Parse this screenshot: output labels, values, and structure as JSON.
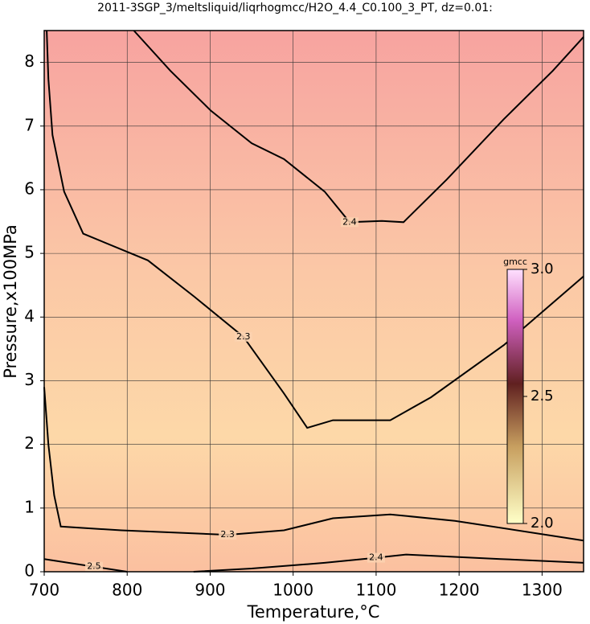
{
  "chart_data": {
    "type": "contour",
    "title": "2011-3SGP_3/meltsliquid/liqrhogmcc/H2O_4.4_C0.100_3_PT, dz=0.01:",
    "x_label": "Temperature,°C",
    "y_label": "Pressure,x100MPa",
    "xlim": [
      700,
      1350
    ],
    "ylim": [
      0,
      8.5
    ],
    "xticks": [
      700,
      800,
      900,
      1000,
      1100,
      1200,
      1300
    ],
    "yticks": [
      0,
      1,
      2,
      3,
      4,
      5,
      6,
      7,
      8
    ],
    "grid": true,
    "contours": [
      {
        "level": 2.4,
        "x": [
          808,
          852,
          901,
          950,
          989,
          1038,
          1068,
          1107,
          1133,
          1185,
          1254,
          1313,
          1350
        ],
        "y": [
          8.5,
          7.87,
          7.24,
          6.73,
          6.48,
          5.97,
          5.49,
          5.51,
          5.49,
          6.16,
          7.11,
          7.87,
          8.4
        ]
      },
      {
        "level": 2.3,
        "x": [
          703,
          705,
          710,
          724,
          747,
          825,
          881,
          940,
          989,
          1017,
          1048,
          1117,
          1166,
          1254,
          1350
        ],
        "y": [
          8.5,
          7.74,
          6.86,
          5.97,
          5.31,
          4.89,
          4.32,
          3.69,
          2.8,
          2.26,
          2.38,
          2.38,
          2.74,
          3.56,
          4.64
        ]
      },
      {
        "level": 2.3,
        "x": [
          700,
          705,
          712,
          720,
          793,
          921,
          989,
          1048,
          1117,
          1195,
          1350
        ],
        "y": [
          2.9,
          2.0,
          1.2,
          0.71,
          0.65,
          0.58,
          0.65,
          0.84,
          0.9,
          0.8,
          0.49
        ]
      },
      {
        "level": 2.4,
        "x": [
          880,
          950,
          1038,
          1100,
          1136,
          1250,
          1350
        ],
        "y": [
          0,
          0.05,
          0.14,
          0.22,
          0.27,
          0.2,
          0.14
        ]
      },
      {
        "level": 2.5,
        "x": [
          700,
          760,
          800
        ],
        "y": [
          0.2,
          0.08,
          0
        ]
      }
    ],
    "colorbar": {
      "label": "gmcc",
      "lim": [
        2,
        3
      ],
      "ticks": [
        {
          "value": 2,
          "label": "2.0"
        },
        2.5,
        {
          "value": 3,
          "label": "3.0"
        }
      ]
    }
  }
}
